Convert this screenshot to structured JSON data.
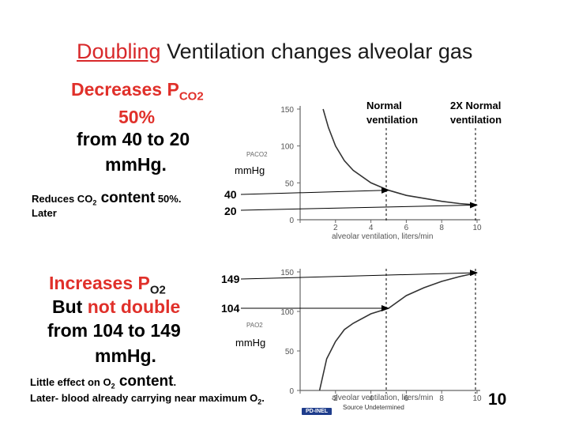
{
  "title": {
    "accent": "Doubling",
    "rest": " Ventilation changes alveolar gas"
  },
  "co2": {
    "line1_prefix": "Decreases P",
    "line1_sub": "CO2",
    "line2": "50%",
    "line3": "from 40 to 20",
    "line4": "mmHg.",
    "note_prefix": "Reduces CO",
    "note_sub": "2",
    "note_mid": " content",
    "note_suffix": " 50%.",
    "note_line2": "Later"
  },
  "o2": {
    "line1_prefix": "Increases P",
    "line1_sub": "O2",
    "line2_prefix": "But ",
    "line2_red": "not double",
    "line3": "from 104  to 149",
    "line4": "mmHg.",
    "note_prefix": "Little effect on O",
    "note_sub": "2",
    "note_mid": " content",
    "note_suffix": ".",
    "note_line2_prefix": "Later- blood already carrying near maximum O",
    "note_line2_sub": "2",
    "note_line2_suffix": "."
  },
  "labels": {
    "normal": "Normal",
    "normal2": "ventilation",
    "double": "2X Normal",
    "double2": "ventilation",
    "mmhg_top": "mmHg",
    "mmhg_bottom": "mmHg",
    "val_40": "40",
    "val_20": "20",
    "val_149": "149",
    "val_104": "104"
  },
  "chart_data": [
    {
      "type": "line",
      "title": "",
      "xlabel": "alveolar ventilation, liters/min",
      "ylabel": "PACO2",
      "xlim": [
        0,
        10
      ],
      "ylim": [
        0,
        150
      ],
      "x_ticks": [
        "0",
        "2",
        "4",
        "6",
        "8",
        "10"
      ],
      "y_ticks": [
        "0",
        "50",
        "100",
        "150"
      ],
      "x": [
        1.3,
        1.6,
        2,
        2.5,
        3,
        4,
        5,
        6,
        7,
        8,
        9,
        10
      ],
      "y": [
        150,
        125,
        100,
        80,
        67,
        50,
        40,
        33,
        29,
        25,
        22,
        20
      ],
      "reference_lines_x": [
        5,
        10
      ]
    },
    {
      "type": "line",
      "title": "",
      "xlabel": "alveolar ventilation, liters/min",
      "ylabel": "PAO2",
      "xlim": [
        0,
        10
      ],
      "ylim": [
        0,
        150
      ],
      "x_ticks": [
        "0",
        "2",
        "4",
        "6",
        "8",
        "10"
      ],
      "y_ticks": [
        "0",
        "50",
        "100",
        "150"
      ],
      "x": [
        1.1,
        1.5,
        2,
        2.5,
        3,
        4,
        5,
        6,
        7,
        8,
        9,
        10
      ],
      "y": [
        0,
        40,
        62,
        77,
        85,
        97,
        104,
        120,
        130,
        138,
        144,
        149
      ],
      "reference_lines_x": [
        5,
        10
      ]
    }
  ],
  "footer": {
    "badge": "PD-INEL",
    "source": "Source Undetermined",
    "slide_number": "10"
  }
}
